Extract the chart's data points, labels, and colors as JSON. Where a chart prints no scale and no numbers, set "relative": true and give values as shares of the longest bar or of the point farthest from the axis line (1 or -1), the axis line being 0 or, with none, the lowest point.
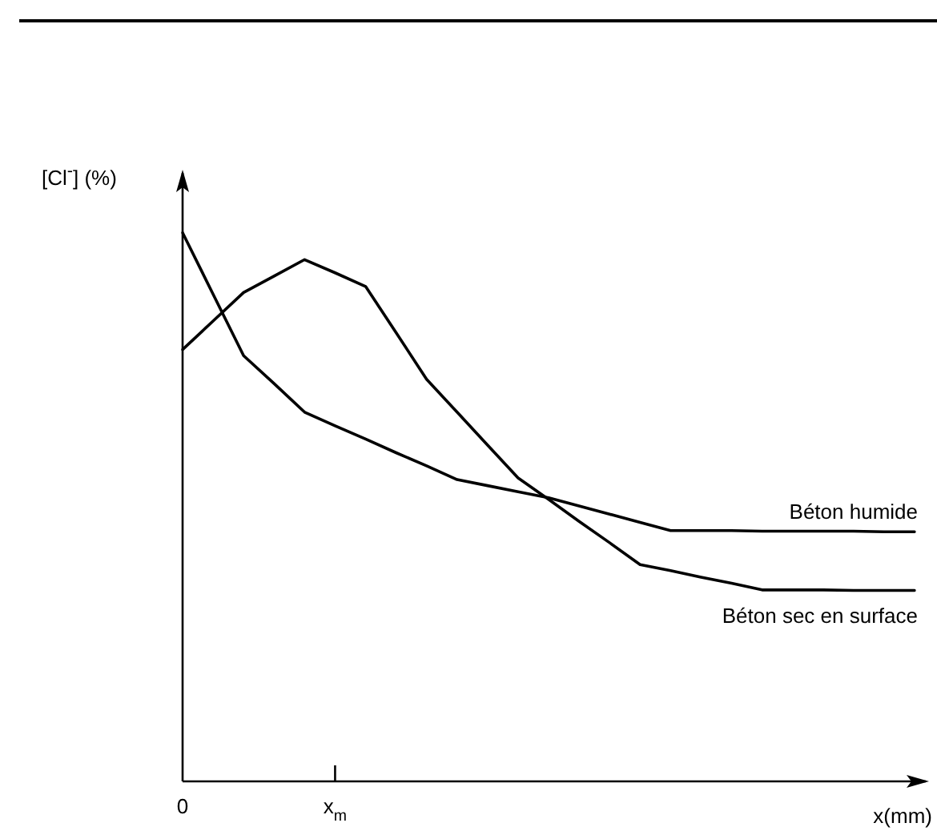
{
  "chart_data": {
    "type": "line",
    "relative": true,
    "xlabel": "x(mm)",
    "ylabel": "[Cl$^{-}$] (%)",
    "categories": [
      "0",
      null,
      null,
      null,
      null,
      "x$_{m}$",
      null,
      null,
      null,
      null,
      null,
      null,
      null,
      null,
      null,
      null,
      null,
      null,
      null,
      null,
      null,
      null,
      null,
      null,
      null
    ],
    "legend": false,
    "marker": "none",
    "line_style": "solid",
    "series": [
      {
        "name": "Béton humide",
        "color": "#000000",
        "values": [
          1,
          0.888,
          0.776,
          0.725,
          0.673,
          0.648,
          0.624,
          0.599,
          0.575,
          0.55,
          0.539,
          0.528,
          0.517,
          0.502,
          0.487,
          0.472,
          0.457,
          0.457,
          0.457,
          0.456,
          0.456,
          0.456,
          0.456,
          0.455,
          0.455
        ]
      },
      {
        "name": "Béton sec en surface",
        "color": "#000000",
        "values": [
          0.787,
          0.839,
          0.891,
          0.921,
          0.951,
          0.927,
          0.902,
          0.818,
          0.733,
          0.673,
          0.613,
          0.553,
          0.514,
          0.474,
          0.435,
          0.395,
          0.384,
          0.372,
          0.361,
          0.349,
          0.349,
          0.349,
          0.348,
          0.348,
          0.348
        ]
      }
    ]
  }
}
